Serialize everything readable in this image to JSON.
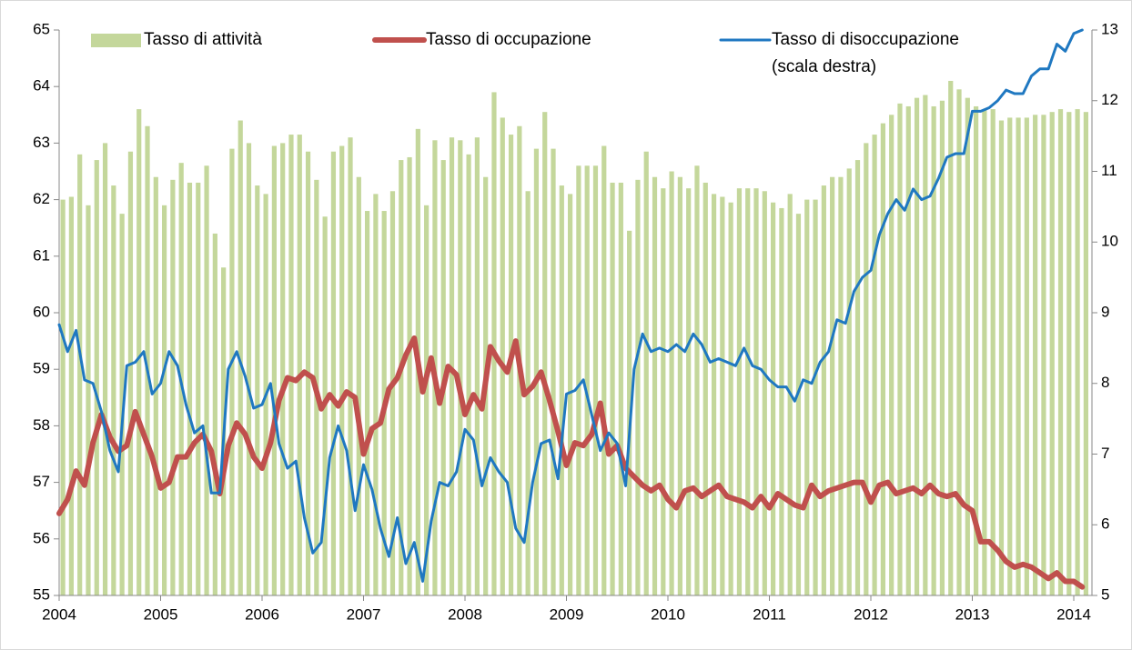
{
  "chart_data": {
    "type": "bar-line",
    "categories": [
      "2004",
      null,
      null,
      null,
      null,
      null,
      null,
      null,
      null,
      null,
      null,
      null,
      "2005",
      null,
      null,
      null,
      null,
      null,
      null,
      null,
      null,
      null,
      null,
      null,
      "2006",
      null,
      null,
      null,
      null,
      null,
      null,
      null,
      null,
      null,
      null,
      null,
      "2007",
      null,
      null,
      null,
      null,
      null,
      null,
      null,
      null,
      null,
      null,
      null,
      "2008",
      null,
      null,
      null,
      null,
      null,
      null,
      null,
      null,
      null,
      null,
      null,
      "2009",
      null,
      null,
      null,
      null,
      null,
      null,
      null,
      null,
      null,
      null,
      null,
      "2010",
      null,
      null,
      null,
      null,
      null,
      null,
      null,
      null,
      null,
      null,
      null,
      "2011",
      null,
      null,
      null,
      null,
      null,
      null,
      null,
      null,
      null,
      null,
      null,
      "2012",
      null,
      null,
      null,
      null,
      null,
      null,
      null,
      null,
      null,
      null,
      null,
      "2013",
      null,
      null,
      null,
      null,
      null,
      null,
      null,
      null,
      null,
      null,
      null,
      "2014",
      null
    ],
    "series": [
      {
        "name": "Tasso di attività",
        "type": "bar",
        "color": "#c4d79b",
        "values": [
          62.0,
          62.05,
          62.8,
          61.9,
          62.7,
          63.0,
          62.25,
          61.75,
          62.85,
          63.6,
          63.3,
          62.4,
          61.9,
          62.35,
          62.65,
          62.3,
          62.3,
          62.6,
          61.4,
          60.8,
          62.9,
          63.4,
          63.0,
          62.25,
          62.1,
          62.95,
          63.0,
          63.15,
          63.15,
          62.85,
          62.35,
          61.7,
          62.85,
          62.95,
          63.1,
          62.4,
          61.8,
          62.1,
          61.8,
          62.15,
          62.7,
          62.75,
          63.25,
          61.9,
          63.05,
          62.7,
          63.1,
          63.05,
          62.8,
          63.1,
          62.4,
          63.9,
          63.45,
          63.15,
          63.3,
          62.15,
          62.9,
          63.55,
          62.9,
          62.25,
          62.1,
          62.6,
          62.6,
          62.6,
          62.95,
          62.3,
          62.3,
          61.45,
          62.35,
          62.85,
          62.4,
          62.2,
          62.5,
          62.4,
          62.2,
          62.6,
          62.3,
          62.1,
          62.05,
          61.95,
          62.2,
          62.2,
          62.2,
          62.15,
          61.95,
          61.85,
          62.1,
          61.75,
          62.0,
          62.0,
          62.25,
          62.4,
          62.4,
          62.55,
          62.7,
          63.0,
          63.15,
          63.35,
          63.5,
          63.7,
          63.65,
          63.8,
          63.85,
          63.65,
          63.75,
          64.1,
          63.95,
          63.8,
          63.65,
          63.6,
          63.6,
          63.4,
          63.45,
          63.45,
          63.45,
          63.5,
          63.5,
          63.55,
          63.6,
          63.55,
          63.6,
          63.55
        ]
      },
      {
        "name": "Tasso di occupazione",
        "type": "line",
        "color": "#c0504d",
        "values": [
          56.45,
          56.7,
          57.2,
          56.95,
          57.7,
          58.2,
          57.8,
          57.55,
          57.65,
          58.25,
          57.85,
          57.45,
          56.9,
          57.0,
          57.45,
          57.45,
          57.7,
          57.85,
          57.55,
          56.8,
          57.65,
          58.05,
          57.85,
          57.45,
          57.25,
          57.7,
          58.45,
          58.85,
          58.8,
          58.95,
          58.85,
          58.3,
          58.55,
          58.35,
          58.6,
          58.5,
          57.5,
          57.95,
          58.05,
          58.65,
          58.85,
          59.25,
          59.55,
          58.6,
          59.2,
          58.4,
          59.05,
          58.9,
          58.2,
          58.55,
          58.3,
          59.4,
          59.15,
          58.95,
          59.5,
          58.55,
          58.7,
          58.95,
          58.45,
          57.9,
          57.3,
          57.7,
          57.65,
          57.85,
          58.4,
          57.5,
          57.65,
          57.25,
          57.1,
          56.95,
          56.85,
          56.95,
          56.7,
          56.55,
          56.85,
          56.9,
          56.75,
          56.85,
          56.95,
          56.75,
          56.7,
          56.65,
          56.55,
          56.75,
          56.55,
          56.8,
          56.7,
          56.6,
          56.55,
          56.95,
          56.75,
          56.85,
          56.9,
          56.95,
          57.0,
          57.0,
          56.65,
          56.95,
          57.0,
          56.8,
          56.85,
          56.9,
          56.8,
          56.95,
          56.8,
          56.75,
          56.8,
          56.6,
          56.5,
          55.95,
          55.95,
          55.8,
          55.6,
          55.5,
          55.55,
          55.5,
          55.4,
          55.3,
          55.4,
          55.25,
          55.25,
          55.15
        ]
      },
      {
        "name": "Tasso di disoccupazione\n(scala destra)",
        "type": "line",
        "axis": "y2",
        "color": "#1f78c1",
        "values": [
          8.83,
          8.45,
          8.75,
          8.05,
          8.0,
          7.6,
          7.05,
          6.75,
          8.25,
          8.3,
          8.45,
          7.85,
          8.0,
          8.45,
          8.25,
          7.7,
          7.3,
          7.4,
          6.45,
          6.45,
          8.2,
          8.45,
          8.1,
          7.65,
          7.7,
          8.0,
          7.15,
          6.8,
          6.9,
          6.1,
          5.6,
          5.75,
          6.95,
          7.4,
          7.05,
          6.2,
          6.85,
          6.5,
          5.95,
          5.55,
          6.1,
          5.45,
          5.75,
          5.2,
          6.05,
          6.6,
          6.55,
          6.75,
          7.35,
          7.2,
          6.55,
          6.95,
          6.75,
          6.6,
          5.95,
          5.75,
          6.6,
          7.15,
          7.2,
          6.65,
          7.85,
          7.9,
          8.05,
          7.55,
          7.05,
          7.3,
          7.15,
          6.55,
          8.2,
          8.7,
          8.45,
          8.5,
          8.45,
          8.55,
          8.45,
          8.7,
          8.55,
          8.3,
          8.35,
          8.3,
          8.25,
          8.5,
          8.25,
          8.2,
          8.05,
          7.95,
          7.95,
          7.75,
          8.05,
          8.0,
          8.3,
          8.45,
          8.9,
          8.85,
          9.3,
          9.5,
          9.6,
          10.1,
          10.4,
          10.6,
          10.45,
          10.75,
          10.6,
          10.65,
          10.9,
          11.2,
          11.25,
          11.25,
          11.85,
          11.85,
          11.9,
          12.0,
          12.15,
          12.1,
          12.1,
          12.35,
          12.45,
          12.45,
          12.8,
          12.7,
          12.95,
          13.0
        ]
      }
    ],
    "ylim": [
      55,
      65
    ],
    "yticks": [
      55,
      56,
      57,
      58,
      59,
      60,
      61,
      62,
      63,
      64,
      65
    ],
    "y2lim": [
      5,
      13
    ],
    "y2ticks": [
      5,
      6,
      7,
      8,
      9,
      10,
      11,
      12,
      13
    ]
  }
}
